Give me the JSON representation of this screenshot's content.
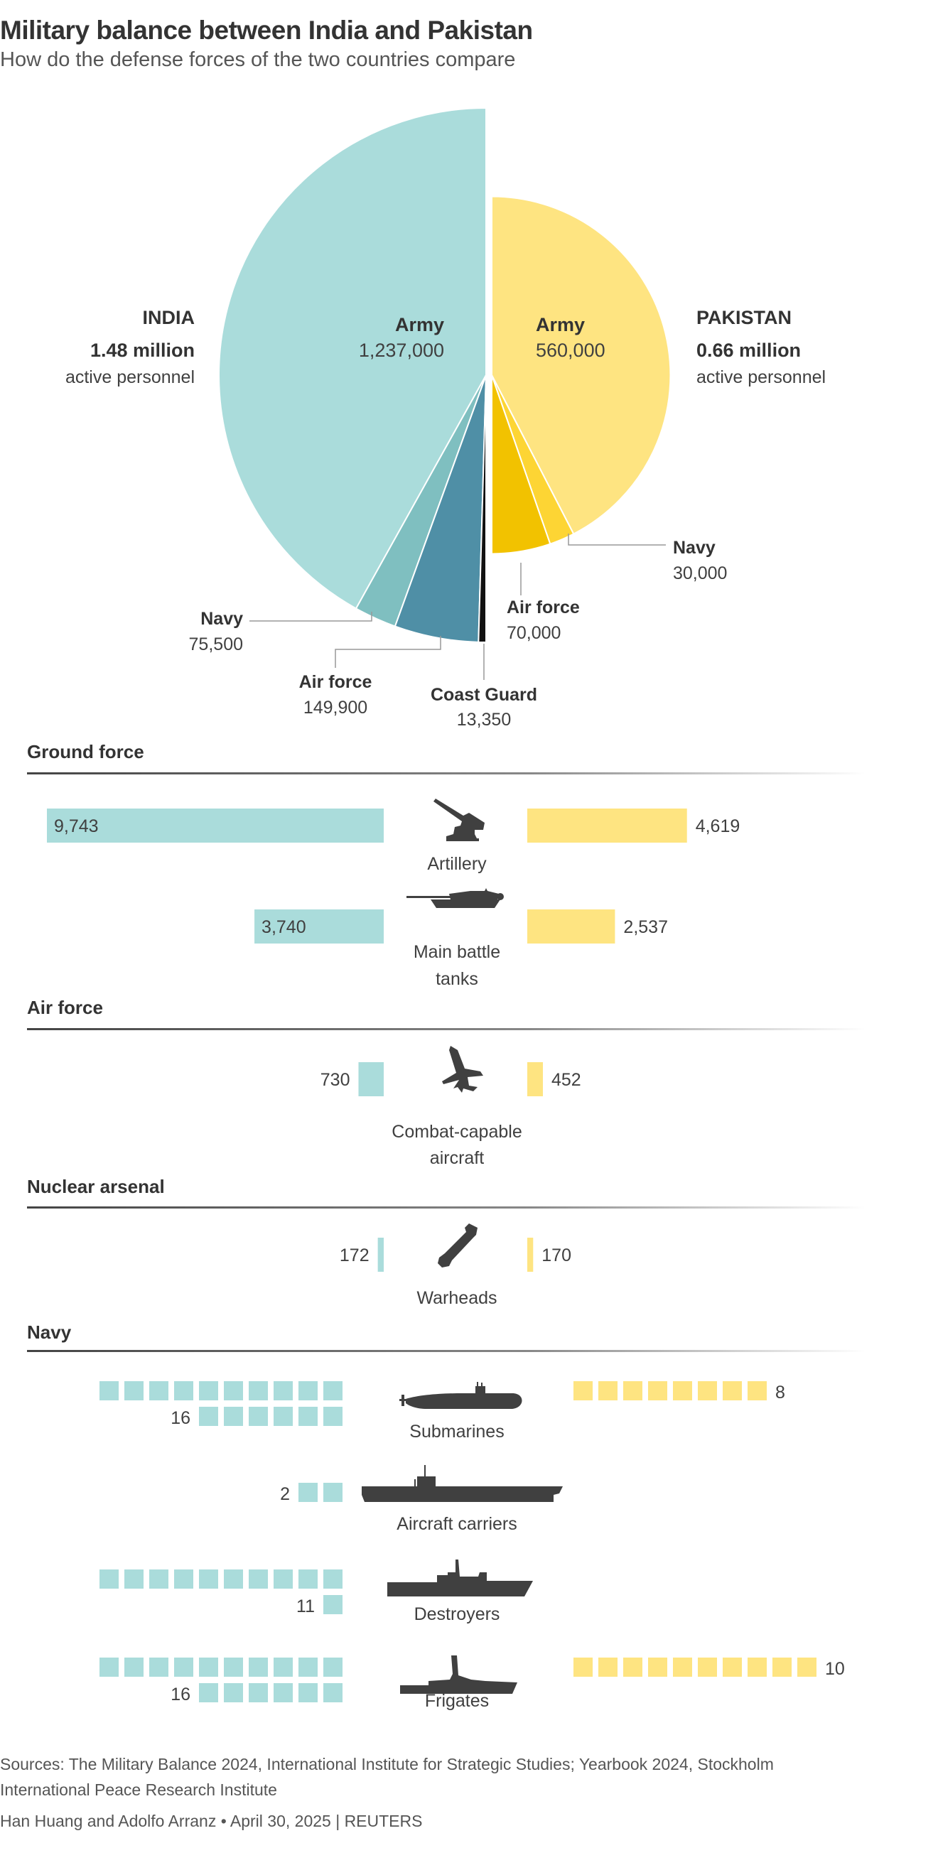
{
  "header": {
    "title": "Military balance between India and Pakistan",
    "subtitle": "How do the defense forces of the two countries compare"
  },
  "colors": {
    "india": "#aadcdb",
    "pakistan": "#fee481",
    "text": "#404040",
    "icon": "#404040"
  },
  "chart_data": [
    {
      "type": "pie",
      "title": "Active personnel",
      "series": [
        {
          "name": "INDIA",
          "total_label": "1.48 million",
          "total_sub": "active personnel",
          "slices": [
            {
              "label": "Army",
              "value": 1237000,
              "value_label": "1,237,000",
              "color": "#aadcdb"
            },
            {
              "label": "Navy",
              "value": 75500,
              "value_label": "75,500",
              "color": "#7fbfc0"
            },
            {
              "label": "Air force",
              "value": 149900,
              "value_label": "149,900",
              "color": "#4f8fa6"
            },
            {
              "label": "Coast Guard",
              "value": 13350,
              "value_label": "13,350",
              "color": "#111111"
            }
          ]
        },
        {
          "name": "PAKISTAN",
          "total_label": "0.66 million",
          "total_sub": "active personnel",
          "slices": [
            {
              "label": "Army",
              "value": 560000,
              "value_label": "560,000",
              "color": "#fee481"
            },
            {
              "label": "Navy",
              "value": 30000,
              "value_label": "30,000",
              "color": "#fdd534"
            },
            {
              "label": "Air force",
              "value": 70000,
              "value_label": "70,000",
              "color": "#f2c200"
            }
          ]
        }
      ]
    },
    {
      "type": "bar",
      "sections": [
        {
          "title": "Ground force",
          "items": [
            {
              "label": "Artillery",
              "icon": "artillery-icon",
              "india": 9743,
              "india_label": "9,743",
              "pakistan": 4619,
              "pakistan_label": "4,619"
            },
            {
              "label": "Main battle tanks",
              "label_lines": [
                "Main battle",
                "tanks"
              ],
              "icon": "tank-icon",
              "india": 3740,
              "india_label": "3,740",
              "pakistan": 2537,
              "pakistan_label": "2,537"
            }
          ]
        },
        {
          "title": "Air force",
          "items": [
            {
              "label": "Combat-capable aircraft",
              "label_lines": [
                "Combat-capable",
                "aircraft"
              ],
              "icon": "fighter-jet-icon",
              "india": 730,
              "india_label": "730",
              "pakistan": 452,
              "pakistan_label": "452"
            }
          ]
        },
        {
          "title": "Nuclear arsenal",
          "items": [
            {
              "label": "Warheads",
              "icon": "warhead-icon",
              "india": 172,
              "india_label": "172",
              "pakistan": 170,
              "pakistan_label": "170"
            }
          ]
        }
      ]
    },
    {
      "type": "pictogram",
      "title": "Navy",
      "items": [
        {
          "label": "Submarines",
          "icon": "submarine-icon",
          "india": 16,
          "india_label": "16",
          "pakistan": 8,
          "pakistan_label": "8"
        },
        {
          "label": "Aircraft carriers",
          "icon": "aircraft-carrier-icon",
          "india": 2,
          "india_label": "2",
          "pakistan": 0,
          "pakistan_label": ""
        },
        {
          "label": "Destroyers",
          "icon": "destroyer-icon",
          "india": 11,
          "india_label": "11",
          "pakistan": 0,
          "pakistan_label": ""
        },
        {
          "label": "Frigates",
          "icon": "frigate-icon",
          "india": 16,
          "india_label": "16",
          "pakistan": 10,
          "pakistan_label": "10"
        }
      ]
    }
  ],
  "footer": {
    "sources": "Sources: The Military Balance 2024, International Institute for Strategic Studies; Yearbook 2024, Stockholm",
    "sources2": "International Peace Research Institute",
    "credit": "Han Huang and Adolfo Arranz • April 30, 2025 | REUTERS"
  }
}
